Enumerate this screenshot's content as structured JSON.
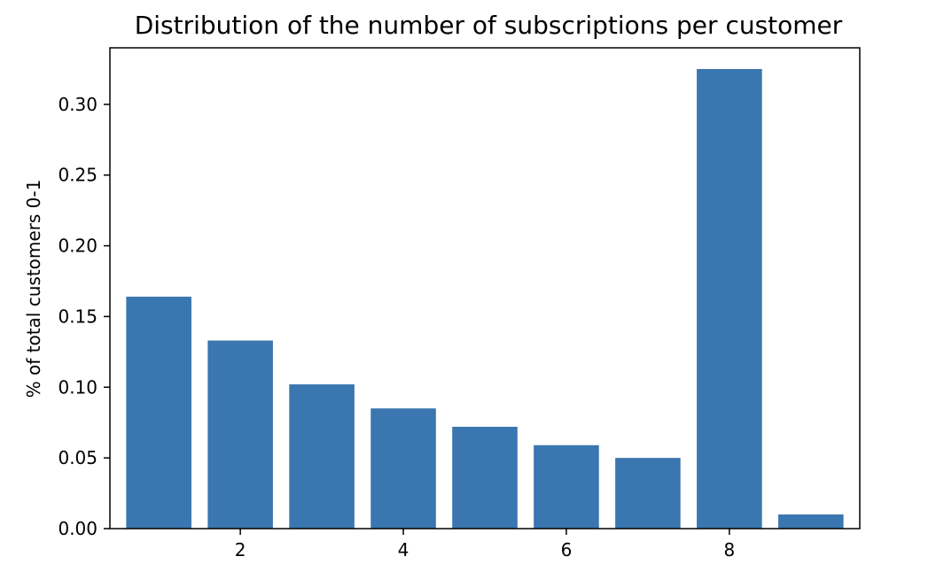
{
  "chart_data": {
    "type": "bar",
    "title": "Distribution of the number of subscriptions per customer",
    "xlabel": "",
    "ylabel": "% of total customers 0-1",
    "x": [
      1,
      2,
      3,
      4,
      5,
      6,
      7,
      8,
      9
    ],
    "values": [
      0.164,
      0.133,
      0.102,
      0.085,
      0.072,
      0.059,
      0.05,
      0.325,
      0.01
    ],
    "xlim": [
      0.4,
      9.6
    ],
    "ylim": [
      0,
      0.34
    ],
    "xticks": [
      2,
      4,
      6,
      8
    ],
    "xtick_labels": [
      "2",
      "4",
      "6",
      "8"
    ],
    "yticks": [
      0.0,
      0.05,
      0.1,
      0.15,
      0.2,
      0.25,
      0.3
    ],
    "ytick_labels": [
      "0.00",
      "0.05",
      "0.10",
      "0.15",
      "0.20",
      "0.25",
      "0.30"
    ],
    "bar_color": "#3a76af",
    "grid": false,
    "legend": "none"
  }
}
